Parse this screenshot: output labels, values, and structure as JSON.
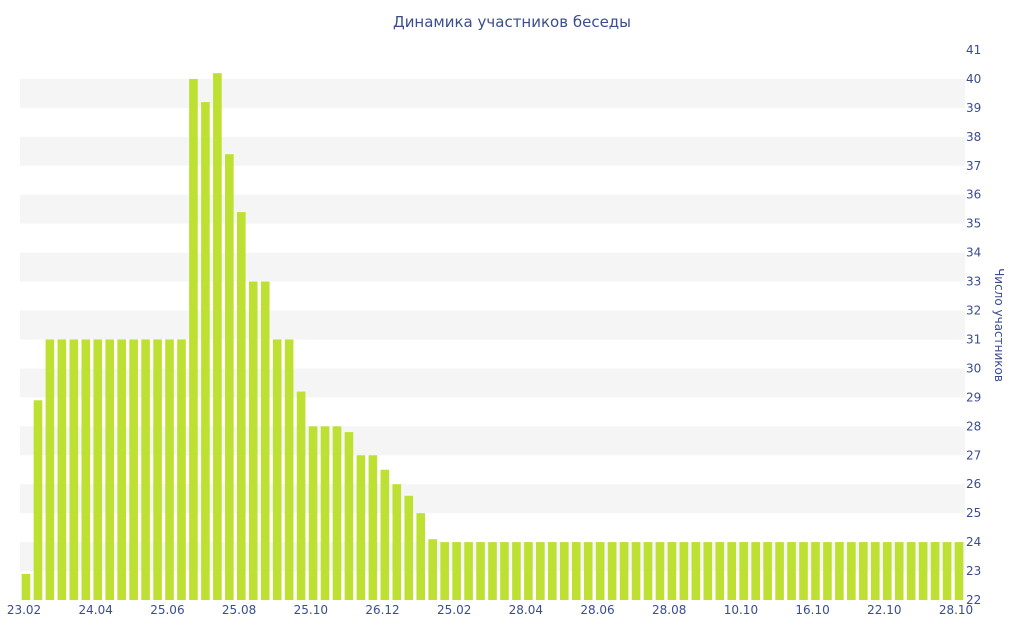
{
  "chart_data": {
    "type": "bar",
    "title": "Динамика участников беседы",
    "ylabel": "Число участников",
    "xlabel": "",
    "ylim": [
      22,
      41
    ],
    "y_axis_position": "right",
    "grid": "alternating horizontal bands",
    "bar_color": "#bde032",
    "band_color": "#f5f5f5",
    "text_color": "#3a4d8f",
    "x_tick_labels": [
      "23.02",
      "24.04",
      "25.06",
      "25.08",
      "25.10",
      "26.12",
      "25.02",
      "28.04",
      "28.06",
      "28.08",
      "10.10",
      "16.10",
      "22.10",
      "28.10"
    ],
    "y_ticks": [
      22,
      23,
      24,
      25,
      26,
      27,
      28,
      29,
      30,
      31,
      32,
      33,
      34,
      35,
      36,
      37,
      38,
      39,
      40,
      41
    ],
    "values": [
      22.9,
      28.9,
      31,
      31,
      31,
      31,
      31,
      31,
      31,
      31,
      31,
      31,
      31,
      31,
      40,
      39.2,
      40.2,
      37.4,
      35.4,
      33,
      33,
      31,
      31,
      29.2,
      28,
      28,
      28,
      27.8,
      27,
      27,
      26.5,
      26,
      25.6,
      25,
      24.1,
      24,
      24,
      24,
      24,
      24,
      24,
      24,
      24,
      24,
      24,
      24,
      24,
      24,
      24,
      24,
      24,
      24,
      24,
      24,
      24,
      24,
      24,
      24,
      24,
      24,
      24,
      24,
      24,
      24,
      24,
      24,
      24,
      24,
      24,
      24,
      24,
      24,
      24,
      24,
      24,
      24,
      24,
      24,
      24
    ]
  }
}
